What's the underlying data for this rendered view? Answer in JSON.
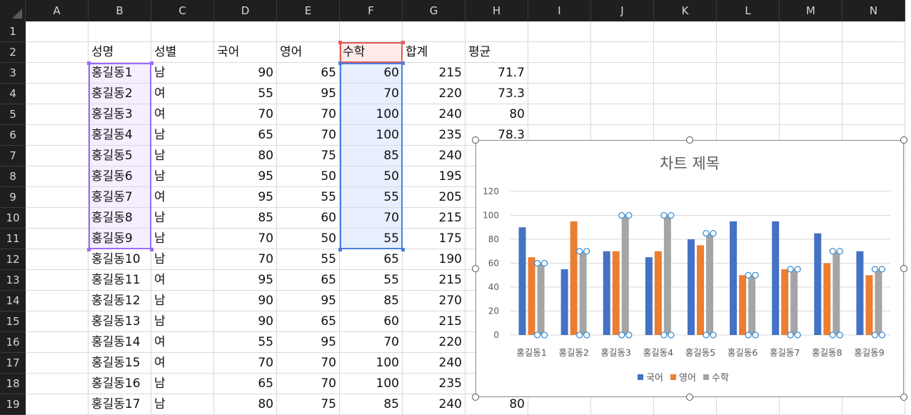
{
  "columns": [
    "A",
    "B",
    "C",
    "D",
    "E",
    "F",
    "G",
    "H",
    "I",
    "J",
    "K",
    "L",
    "M",
    "N"
  ],
  "rows": [
    "1",
    "2",
    "3",
    "4",
    "5",
    "6",
    "7",
    "8",
    "9",
    "10",
    "11",
    "12",
    "13",
    "14",
    "15",
    "16",
    "17",
    "18",
    "19"
  ],
  "headers": [
    "성명",
    "성별",
    "국어",
    "영어",
    "수학",
    "합계",
    "평균"
  ],
  "data_rows": [
    {
      "name": "홍길동1",
      "gender": "남",
      "kor": "90",
      "eng": "65",
      "math": "60",
      "sum": "215",
      "avg": "71.7"
    },
    {
      "name": "홍길동2",
      "gender": "여",
      "kor": "55",
      "eng": "95",
      "math": "70",
      "sum": "220",
      "avg": "73.3"
    },
    {
      "name": "홍길동3",
      "gender": "여",
      "kor": "70",
      "eng": "70",
      "math": "100",
      "sum": "240",
      "avg": "80"
    },
    {
      "name": "홍길동4",
      "gender": "남",
      "kor": "65",
      "eng": "70",
      "math": "100",
      "sum": "235",
      "avg": "78.3"
    },
    {
      "name": "홍길동5",
      "gender": "남",
      "kor": "80",
      "eng": "75",
      "math": "85",
      "sum": "240",
      "avg": ""
    },
    {
      "name": "홍길동6",
      "gender": "남",
      "kor": "95",
      "eng": "50",
      "math": "50",
      "sum": "195",
      "avg": ""
    },
    {
      "name": "홍길동7",
      "gender": "여",
      "kor": "95",
      "eng": "55",
      "math": "55",
      "sum": "205",
      "avg": ""
    },
    {
      "name": "홍길동8",
      "gender": "남",
      "kor": "85",
      "eng": "60",
      "math": "70",
      "sum": "215",
      "avg": ""
    },
    {
      "name": "홍길동9",
      "gender": "남",
      "kor": "70",
      "eng": "50",
      "math": "55",
      "sum": "175",
      "avg": ""
    },
    {
      "name": "홍길동10",
      "gender": "남",
      "kor": "70",
      "eng": "55",
      "math": "65",
      "sum": "190",
      "avg": ""
    },
    {
      "name": "홍길동11",
      "gender": "여",
      "kor": "95",
      "eng": "65",
      "math": "55",
      "sum": "215",
      "avg": ""
    },
    {
      "name": "홍길동12",
      "gender": "남",
      "kor": "90",
      "eng": "95",
      "math": "85",
      "sum": "270",
      "avg": ""
    },
    {
      "name": "홍길동13",
      "gender": "남",
      "kor": "90",
      "eng": "65",
      "math": "60",
      "sum": "215",
      "avg": ""
    },
    {
      "name": "홍길동14",
      "gender": "여",
      "kor": "55",
      "eng": "95",
      "math": "70",
      "sum": "220",
      "avg": ""
    },
    {
      "name": "홍길동15",
      "gender": "여",
      "kor": "70",
      "eng": "70",
      "math": "100",
      "sum": "240",
      "avg": ""
    },
    {
      "name": "홍길동16",
      "gender": "남",
      "kor": "65",
      "eng": "70",
      "math": "100",
      "sum": "235",
      "avg": ""
    },
    {
      "name": "홍길동17",
      "gender": "남",
      "kor": "80",
      "eng": "75",
      "math": "85",
      "sum": "240",
      "avg": "80"
    }
  ],
  "chart_data": {
    "type": "bar",
    "title": "차트 제목",
    "categories": [
      "홍길동1",
      "홍길동2",
      "홍길동3",
      "홍길동4",
      "홍길동5",
      "홍길동6",
      "홍길동7",
      "홍길동8",
      "홍길동9"
    ],
    "series": [
      {
        "name": "국어",
        "color": "#4472c4",
        "values": [
          90,
          55,
          70,
          65,
          80,
          95,
          95,
          85,
          70
        ]
      },
      {
        "name": "영어",
        "color": "#ed7d31",
        "values": [
          65,
          95,
          70,
          70,
          75,
          50,
          55,
          60,
          50
        ]
      },
      {
        "name": "수학",
        "color": "#a5a5a5",
        "values": [
          60,
          70,
          100,
          100,
          85,
          50,
          55,
          70,
          55
        ]
      }
    ],
    "yticks": [
      "0",
      "20",
      "40",
      "60",
      "80",
      "100",
      "120"
    ],
    "ylim": [
      0,
      120
    ],
    "grid": true,
    "legend": "bottom",
    "selected_series": "수학"
  },
  "colors": {
    "purple_sel": "#9b6bff",
    "blue_sel": "#4a7fe0",
    "red_sel": "#e05a5a",
    "header_bg": "#1f1f1f"
  }
}
